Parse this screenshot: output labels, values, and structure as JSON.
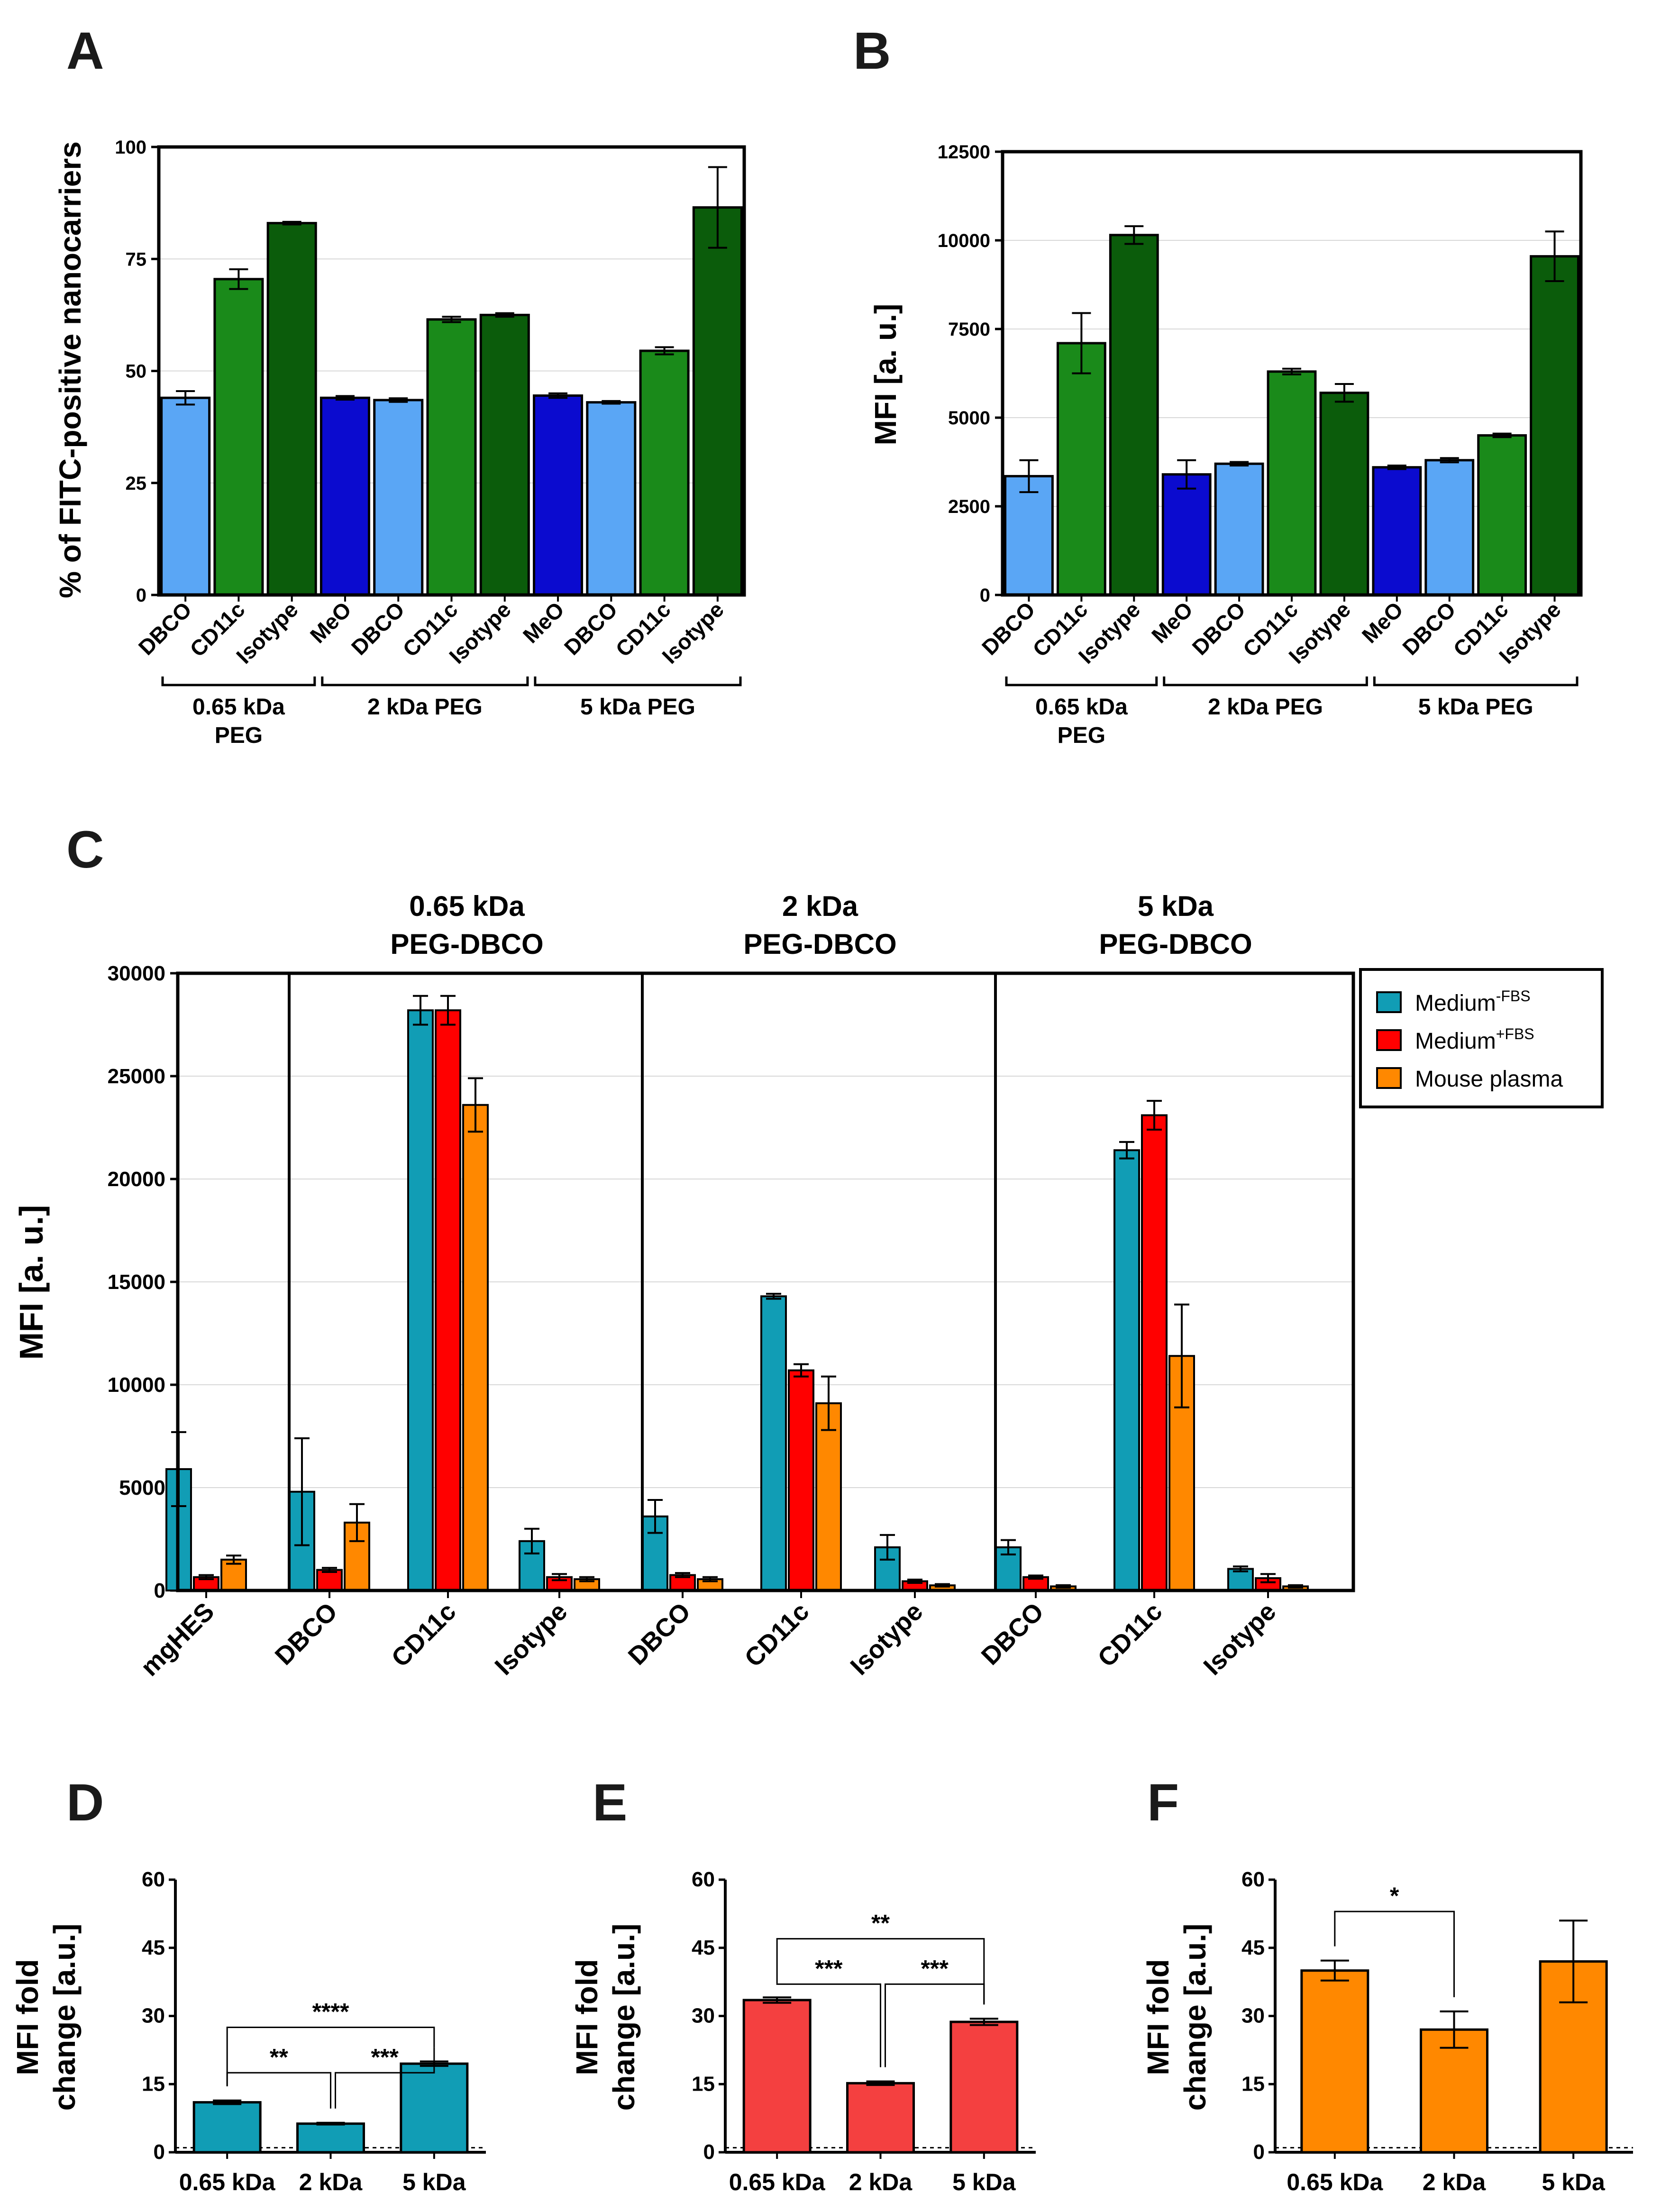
{
  "panel_labels": [
    "A",
    "B",
    "C",
    "D",
    "E",
    "F"
  ],
  "colors": {
    "light_blue": "#5aa6f5",
    "green": "#1a8a1a",
    "dark_green": "#0b5c0b",
    "blue": "#0b0bcf",
    "teal": "#119db5",
    "red": "#ff0000",
    "orange": "#ff8800",
    "salmon": "#f44040"
  },
  "chart_data": [
    {
      "id": "A",
      "type": "bar",
      "ylabel": "% of FITC-positive nanocarriers",
      "ylim": [
        0,
        100
      ],
      "yticks": [
        0,
        25,
        50,
        75,
        100
      ],
      "categories": [
        "DBCO",
        "CD11c",
        "Isotype",
        "MeO",
        "DBCO",
        "CD11c",
        "Isotype",
        "MeO",
        "DBCO",
        "CD11c",
        "Isotype"
      ],
      "values": [
        44,
        70.5,
        83,
        44,
        43.5,
        61.5,
        62.5,
        44.5,
        43,
        54.5,
        86.5
      ],
      "errors": [
        1.5,
        2.2,
        0.3,
        0.4,
        0.4,
        0.6,
        0.4,
        0.5,
        0.3,
        0.8,
        9
      ],
      "bar_colors": [
        "light_blue",
        "green",
        "dark_green",
        "blue",
        "light_blue",
        "green",
        "dark_green",
        "blue",
        "light_blue",
        "green",
        "dark_green"
      ],
      "groups": [
        {
          "label": "0.65 kDa PEG",
          "lines": [
            "0.65 kDa",
            "PEG"
          ]
        },
        {
          "label": "2 kDa PEG",
          "lines": [
            "2 kDa PEG"
          ]
        },
        {
          "label": "5 kDa PEG",
          "lines": [
            "5 kDa PEG"
          ]
        }
      ]
    },
    {
      "id": "B",
      "type": "bar",
      "ylabel": "MFI [a. u.]",
      "ylim": [
        0,
        12500
      ],
      "yticks": [
        0,
        2500,
        5000,
        7500,
        10000,
        12500
      ],
      "categories": [
        "DBCO",
        "CD11c",
        "Isotype",
        "MeO",
        "DBCO",
        "CD11c",
        "Isotype",
        "MeO",
        "DBCO",
        "CD11c",
        "Isotype"
      ],
      "values": [
        3350,
        7100,
        10150,
        3400,
        3700,
        6300,
        5700,
        3600,
        3800,
        4500,
        9550
      ],
      "errors": [
        450,
        850,
        250,
        400,
        50,
        80,
        250,
        50,
        60,
        50,
        700
      ],
      "bar_colors": [
        "light_blue",
        "green",
        "dark_green",
        "blue",
        "light_blue",
        "green",
        "dark_green",
        "blue",
        "light_blue",
        "green",
        "dark_green"
      ],
      "groups": [
        {
          "label": "0.65 kDa PEG",
          "lines": [
            "0.65 kDa",
            "PEG"
          ]
        },
        {
          "label": "2 kDa PEG",
          "lines": [
            "2 kDa PEG"
          ]
        },
        {
          "label": "5 kDa PEG",
          "lines": [
            "5 kDa PEG"
          ]
        }
      ]
    },
    {
      "id": "C",
      "type": "bar",
      "ylabel": "MFI [a. u.]",
      "ylim": [
        0,
        30000
      ],
      "yticks": [
        0,
        5000,
        10000,
        15000,
        20000,
        25000,
        30000
      ],
      "categories": [
        "mgHES",
        "DBCO",
        "CD11c",
        "Isotype",
        "DBCO",
        "CD11c",
        "Isotype",
        "DBCO",
        "CD11c",
        "Isotype"
      ],
      "section_titles": [
        {
          "line1": "0.65 kDa",
          "line2": "PEG-DBCO"
        },
        {
          "line1": "2 kDa",
          "line2": "PEG-DBCO"
        },
        {
          "line1": "5 kDa",
          "line2": "PEG-DBCO"
        }
      ],
      "legend": [
        {
          "base": "Medium",
          "sup": "-FBS",
          "color": "teal"
        },
        {
          "base": "Medium",
          "sup": "+FBS",
          "color": "red"
        },
        {
          "base": "Mouse plasma",
          "sup": "",
          "color": "orange"
        }
      ],
      "series": [
        {
          "name": "Medium-FBS",
          "values": [
            5900,
            4800,
            28200,
            2400,
            3600,
            14300,
            2100,
            2100,
            21400,
            1050
          ],
          "errors": [
            1800,
            2600,
            700,
            600,
            800,
            120,
            600,
            350,
            400,
            120
          ]
        },
        {
          "name": "Medium+FBS",
          "values": [
            650,
            1000,
            28200,
            650,
            750,
            10700,
            450,
            650,
            23100,
            600
          ],
          "errors": [
            100,
            100,
            700,
            150,
            100,
            300,
            80,
            80,
            700,
            200
          ]
        },
        {
          "name": "Mouse plasma",
          "values": [
            1500,
            3300,
            23600,
            550,
            550,
            9100,
            250,
            200,
            11400,
            200
          ],
          "errors": [
            200,
            900,
            1300,
            100,
            100,
            1300,
            60,
            60,
            2500,
            60
          ]
        }
      ]
    },
    {
      "id": "D",
      "type": "bar",
      "ylabel_lines": [
        "MFI fold",
        "change [a.u.]"
      ],
      "ylim": [
        0,
        60
      ],
      "yticks": [
        0,
        15,
        30,
        45,
        60
      ],
      "categories": [
        "0.65 kDa",
        "2 kDa",
        "5 kDa"
      ],
      "values": [
        11,
        6.3,
        19.5
      ],
      "errors": [
        0.4,
        0.2,
        0.5
      ],
      "bar_color": "teal",
      "significance": [
        {
          "from": 0,
          "to": 1,
          "label": "**",
          "y": 17.5
        },
        {
          "from": 1,
          "to": 2,
          "label": "***",
          "y": 17.5
        },
        {
          "from": 0,
          "to": 2,
          "label": "****",
          "y": 27.5
        }
      ]
    },
    {
      "id": "E",
      "type": "bar",
      "ylabel_lines": [
        "MFI fold",
        "change [a.u.]"
      ],
      "ylim": [
        0,
        60
      ],
      "yticks": [
        0,
        15,
        30,
        45,
        60
      ],
      "categories": [
        "0.65 kDa",
        "2 kDa",
        "5 kDa"
      ],
      "values": [
        33.5,
        15.2,
        28.7
      ],
      "errors": [
        0.6,
        0.4,
        0.7
      ],
      "bar_color": "salmon",
      "significance": [
        {
          "from": 0,
          "to": 1,
          "label": "***",
          "y": 37
        },
        {
          "from": 1,
          "to": 2,
          "label": "***",
          "y": 37
        },
        {
          "from": 0,
          "to": 2,
          "label": "**",
          "y": 47
        }
      ]
    },
    {
      "id": "F",
      "type": "bar",
      "ylabel_lines": [
        "MFI fold",
        "change [a.u.]"
      ],
      "ylim": [
        0,
        60
      ],
      "yticks": [
        0,
        15,
        30,
        45,
        60
      ],
      "categories": [
        "0.65 kDa",
        "2 kDa",
        "5 kDa"
      ],
      "values": [
        40,
        27,
        42
      ],
      "errors": [
        2.2,
        4,
        9
      ],
      "bar_color": "orange",
      "significance": [
        {
          "from": 0,
          "to": 1,
          "label": "*",
          "y": 53
        }
      ]
    }
  ]
}
